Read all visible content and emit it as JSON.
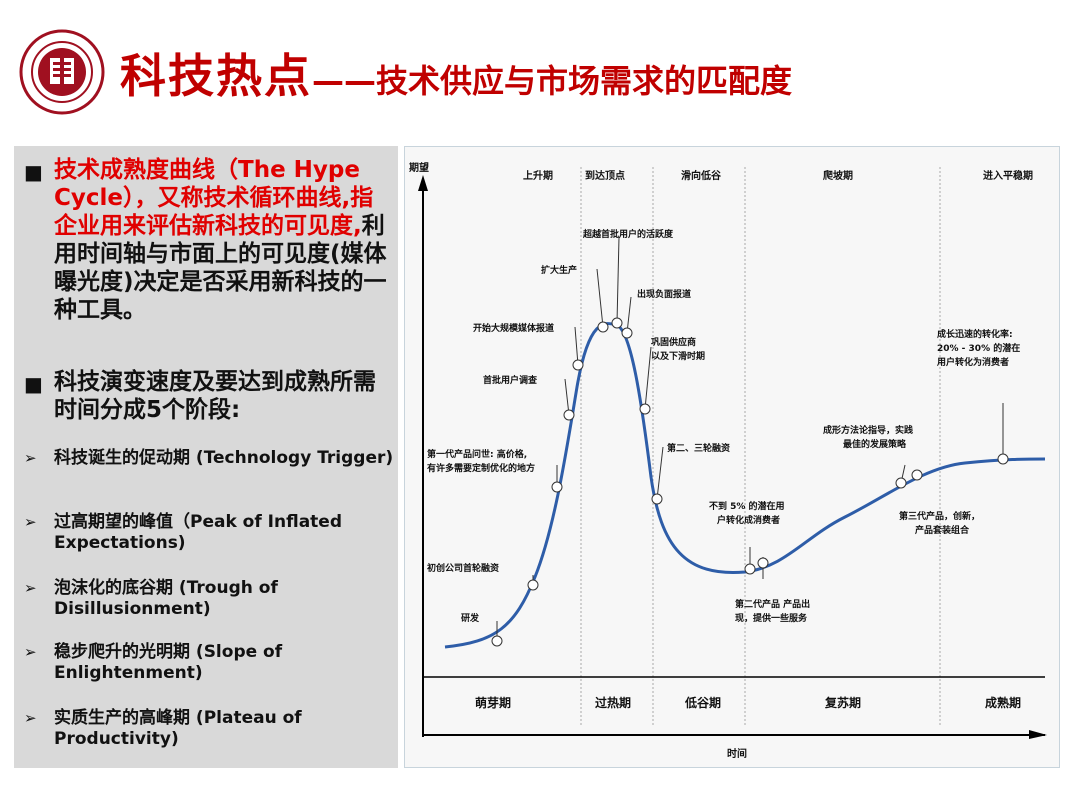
{
  "header": {
    "title_main": "科技热点",
    "title_sub": "——技术供应与市场需求的匹配度",
    "logo": "university-seal"
  },
  "left": {
    "b1_red": "技术成熟度曲线（The Hype Cycle），又称技术循环曲线,指企业用来评估新科技的可见度,",
    "b1_black": "利用时间轴与市面上的可见度(媒体曝光度)决定是否采用新科技的一种工具。",
    "b2": "科技演变速度及要达到成熟所需时间分成5个阶段:",
    "stages": [
      "科技诞生的促动期 (Technology Trigger)",
      "过高期望的峰值（Peak of Inflated Expectations)",
      "泡沫化的底谷期 (Trough of Disillusionment)",
      "稳步爬升的光明期 (Slope of Enlightenment)",
      "实质生产的高峰期 (Plateau of Productivity)"
    ]
  },
  "diagram": {
    "y_axis": "期望",
    "x_axis": "时间",
    "top_phases": [
      "上升期",
      "到达顶点",
      "滑向低谷",
      "爬坡期",
      "进入平稳期"
    ],
    "bottom_phases": [
      "萌芽期",
      "过热期",
      "低谷期",
      "复苏期",
      "成熟期"
    ],
    "annotations": {
      "a1": "研发",
      "a2": "初创公司首轮融资",
      "a3_l1": "第一代产品问世: 高价格,",
      "a3_l2": "有许多需要定制优化的地方",
      "a4": "首批用户调查",
      "a5": "开始大规模媒体报道",
      "a6": "扩大生产",
      "a7": "超越首批用户的活跃度",
      "a8": "出现负面报道",
      "a9_l1": "巩固供应商",
      "a9_l2": "以及下滑时期",
      "a10": "第二、三轮融资",
      "a11_l1": "不到 5% 的潜在用",
      "a11_l2": "户转化成消费者",
      "a12_l1": "第二代产品 产品出",
      "a12_l2": "现，提供一些服务",
      "a13_l1": "成形方法论指导，实践",
      "a13_l2": "最佳的发展策略",
      "a14_l1": "第三代产品，创新，",
      "a14_l2": "产品套装组合",
      "a15_l1": "成长迅速的转化率:",
      "a15_l2": "20% - 30% 的潜在",
      "a15_l3": "用户转化为消费者"
    }
  },
  "colors": {
    "accent": "#c00000",
    "curve": "#2e5da8",
    "panel": "#d9d9d9"
  }
}
